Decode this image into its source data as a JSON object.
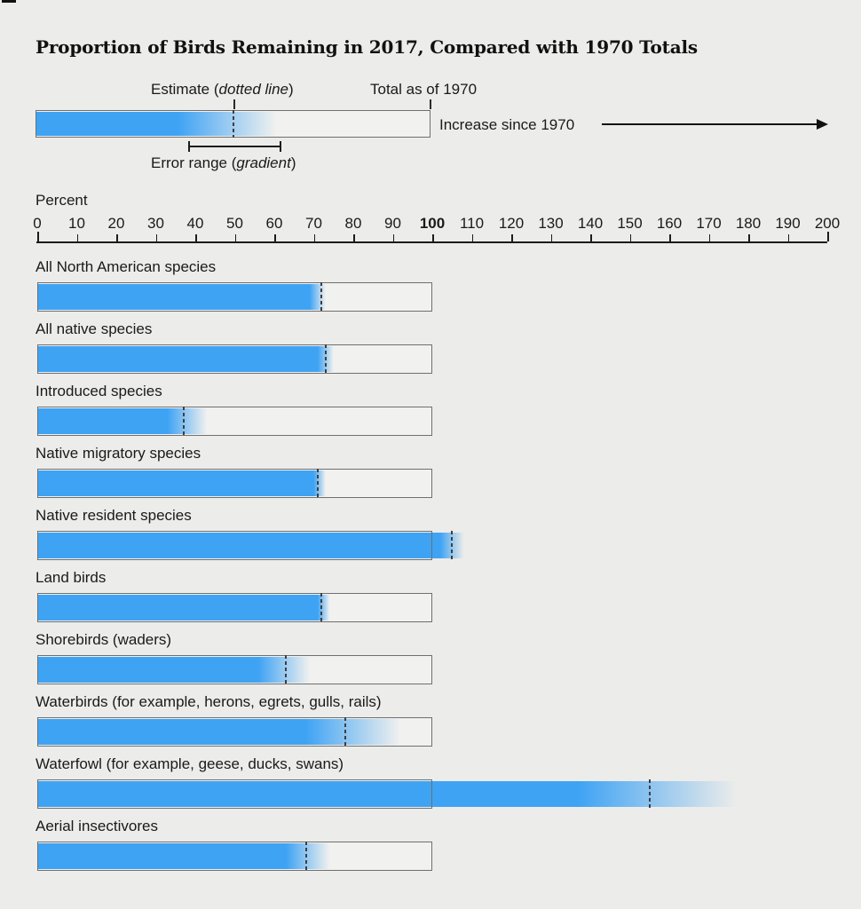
{
  "page": {
    "title": "Proportion of Birds Remaining in 2017, Compared with 1970 Totals"
  },
  "legend": {
    "estimate": {
      "prefix": "Estimate (",
      "italic": "dotted line",
      "suffix": ")"
    },
    "total_label": "Total as of 1970",
    "increase_label": "Increase since 1970",
    "error": {
      "prefix": "Error range (",
      "italic": "gradient",
      "suffix": ")"
    },
    "demo_bar": {
      "estimate": 50,
      "solid_until": 36,
      "empty_from": 61,
      "total": 100
    }
  },
  "axis": {
    "unit_label": "Percent",
    "tick_values": [
      0,
      10,
      20,
      30,
      40,
      50,
      60,
      70,
      80,
      90,
      100,
      110,
      120,
      130,
      140,
      150,
      160,
      170,
      180,
      190,
      200
    ],
    "bold_tick": 100,
    "min": 0,
    "max": 200
  },
  "chart_data": {
    "type": "bar",
    "title": "Proportion of Birds Remaining in 2017, Compared with 1970 Totals",
    "xlabel": "Percent",
    "xlim": [
      0,
      200
    ],
    "reference_total": 100,
    "grid": false,
    "legend_position": "top",
    "categories": [
      "All North American species",
      "All native species",
      "Introduced species",
      "Native migratory species",
      "Native resident species",
      "Land birds",
      "Shorebirds (waders)",
      "Waterbirds (for example, herons, egrets, gulls, rails)",
      "Waterfowl (for example, geese, ducks, swans)",
      "Aerial insectivores"
    ],
    "series": [
      {
        "name": "Estimate, percent remaining in 2017 (dotted line)",
        "values": [
          72,
          73,
          37,
          71,
          105,
          72,
          63,
          78,
          155,
          68
        ]
      },
      {
        "name": "Error range low (gradient start)",
        "values": [
          69,
          71,
          33,
          70,
          102,
          71,
          56,
          68,
          137,
          63
        ]
      },
      {
        "name": "Error range high (gradient end)",
        "values": [
          73,
          75,
          43,
          73,
          108,
          74,
          69,
          92,
          177,
          74
        ]
      }
    ]
  },
  "colors": {
    "bar_blue": "#3FA3F4",
    "bar_empty": "#F1F1EF",
    "bar_border": "#6F6F6F",
    "estimate_line": "#3F3F3F",
    "axis_line": "#1C1C1C",
    "text": "#1A1A1A",
    "background": "#ECECEA"
  }
}
